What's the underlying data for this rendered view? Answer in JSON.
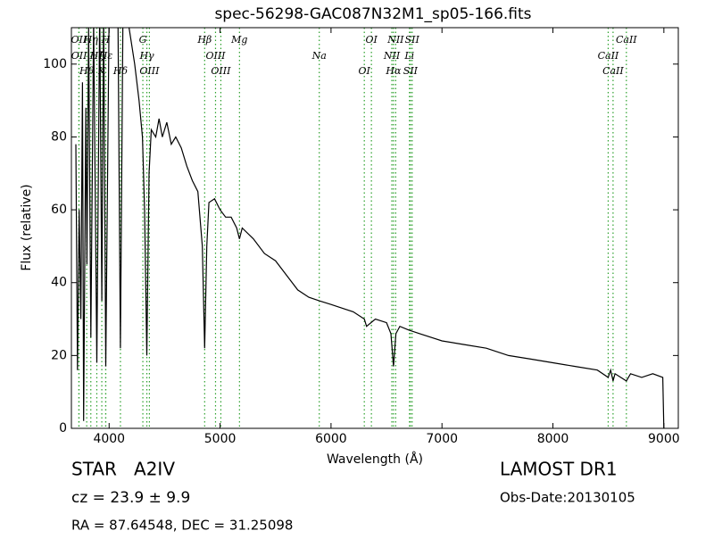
{
  "chart_data": {
    "type": "line",
    "title": "spec-56298-GAC087N32M1_sp05-166.fits",
    "x_label": "Wavelength (Å)",
    "y_label": "Flux (relative)",
    "xlim": [
      3660,
      9130
    ],
    "ylim": [
      0,
      110
    ],
    "xticks": [
      4000,
      5000,
      6000,
      7000,
      8000,
      9000
    ],
    "yticks": [
      0,
      20,
      40,
      60,
      80,
      100
    ],
    "color": "#000000",
    "line_color": "#2ca02c",
    "x": [
      3700,
      3715,
      3730,
      3745,
      3760,
      3770,
      3790,
      3800,
      3815,
      3835,
      3860,
      3889,
      3915,
      3934,
      3950,
      3970,
      4000,
      4040,
      4080,
      4102,
      4125,
      4180,
      4230,
      4270,
      4300,
      4320,
      4340,
      4360,
      4380,
      4420,
      4450,
      4480,
      4520,
      4560,
      4600,
      4650,
      4700,
      4750,
      4800,
      4840,
      4861,
      4880,
      4900,
      4950,
      5000,
      5050,
      5100,
      5150,
      5175,
      5200,
      5300,
      5400,
      5500,
      5600,
      5700,
      5800,
      5894,
      6000,
      6100,
      6200,
      6300,
      6320,
      6400,
      6500,
      6540,
      6563,
      6585,
      6620,
      6700,
      6800,
      7000,
      7200,
      7400,
      7600,
      7800,
      8000,
      8200,
      8400,
      8498,
      8520,
      8542,
      8560,
      8662,
      8700,
      8800,
      8900,
      8990,
      9000
    ],
    "values": [
      78,
      16,
      60,
      30,
      95,
      2,
      88,
      45,
      110,
      25,
      112,
      18,
      115,
      35,
      115,
      17,
      115,
      115,
      112,
      22,
      115,
      110,
      100,
      90,
      80,
      60,
      20,
      70,
      82,
      80,
      85,
      80,
      84,
      78,
      80,
      77,
      72,
      68,
      65,
      50,
      22,
      50,
      62,
      63,
      60,
      58,
      58,
      55,
      52,
      55,
      52,
      48,
      46,
      42,
      38,
      36,
      35,
      34,
      33,
      32,
      30,
      28,
      30,
      29,
      26,
      17,
      26,
      28,
      27,
      26,
      24,
      23,
      22,
      20,
      19,
      18,
      17,
      16,
      14,
      16,
      13,
      15,
      13,
      15,
      14,
      15,
      14,
      0
    ],
    "lines": [
      {
        "x": 3727,
        "label": "OII"
      },
      {
        "x": 3729,
        "label": "OII"
      },
      {
        "x": 3798,
        "label": "Hθ"
      },
      {
        "x": 3835,
        "label": "Hη"
      },
      {
        "x": 3889,
        "label": "Hζ"
      },
      {
        "x": 3934,
        "label": "K"
      },
      {
        "x": 3969,
        "label": "H"
      },
      {
        "x": 3970,
        "label": "Hε"
      },
      {
        "x": 4102,
        "label": "Hδ"
      },
      {
        "x": 4304,
        "label": "G"
      },
      {
        "x": 4340,
        "label": "Hγ"
      },
      {
        "x": 4363,
        "label": "OIII"
      },
      {
        "x": 4861,
        "label": "Hβ"
      },
      {
        "x": 4959,
        "label": "OIII"
      },
      {
        "x": 5007,
        "label": "OIII"
      },
      {
        "x": 5175,
        "label": "Mg"
      },
      {
        "x": 5894,
        "label": "Na"
      },
      {
        "x": 6300,
        "label": "OI"
      },
      {
        "x": 6364,
        "label": "OI"
      },
      {
        "x": 6548,
        "label": "NII"
      },
      {
        "x": 6563,
        "label": "Hα"
      },
      {
        "x": 6583,
        "label": "NII"
      },
      {
        "x": 6707,
        "label": "Li"
      },
      {
        "x": 6716,
        "label": "SII"
      },
      {
        "x": 6731,
        "label": "SII"
      },
      {
        "x": 8498,
        "label": "CaII"
      },
      {
        "x": 8542,
        "label": "CaII"
      },
      {
        "x": 8662,
        "label": "CaII"
      }
    ],
    "object": "STAR   A2IV",
    "cz": "cz = 23.9 ± 9.9",
    "coords": "RA = 87.64548, DEC = 31.25098",
    "survey": "LAMOST DR1",
    "obs_date": "Obs-Date:20130105"
  }
}
